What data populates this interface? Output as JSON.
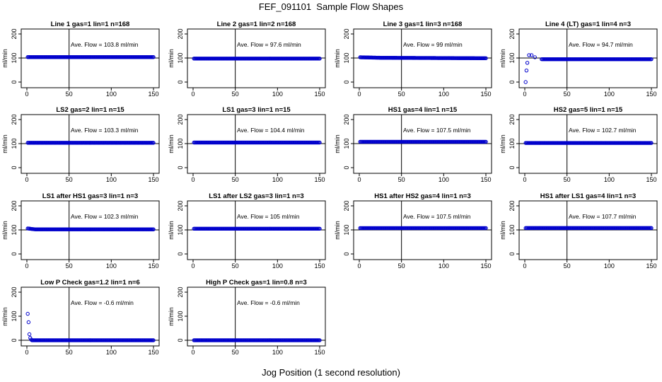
{
  "figure": {
    "title": "FEF_091101  Sample Flow Shapes",
    "xlabel": "Jog Position (1 second resolution)"
  },
  "style": {
    "point_color": "#0000cc",
    "line_color": "#000000"
  },
  "chart_data": [
    {
      "type": "scatter",
      "title": "Line 1 gas=1 lin=1 n=168",
      "ylabel": "ml/min",
      "annotation": "Ave. Flow =  103.8  ml/min",
      "xlim": [
        0,
        150
      ],
      "ylim": [
        0,
        200
      ],
      "xticks": [
        0,
        50,
        100,
        150
      ],
      "yticks": [
        0,
        100,
        200
      ],
      "hline": 100,
      "vline": 50,
      "pattern": "flat",
      "x": [
        1,
        150
      ],
      "y": [
        103.8,
        103.8
      ]
    },
    {
      "type": "scatter",
      "title": "Line 2 gas=1 lin=2 n=168",
      "ylabel": "ml/min",
      "annotation": "Ave. Flow =  97.6  ml/min",
      "xlim": [
        0,
        150
      ],
      "ylim": [
        0,
        200
      ],
      "xticks": [
        0,
        50,
        100,
        150
      ],
      "yticks": [
        0,
        100,
        200
      ],
      "hline": 100,
      "vline": 50,
      "pattern": "flat",
      "x": [
        1,
        150
      ],
      "y": [
        97.6,
        97.6
      ]
    },
    {
      "type": "scatter",
      "title": "Line 3 gas=1 lin=3 n=168",
      "ylabel": "ml/min",
      "annotation": "Ave. Flow =  99  ml/min",
      "xlim": [
        0,
        150
      ],
      "ylim": [
        0,
        200
      ],
      "xticks": [
        0,
        50,
        100,
        150
      ],
      "yticks": [
        0,
        100,
        200
      ],
      "hline": 100,
      "vline": 50,
      "pattern": "flat",
      "x": [
        1,
        25,
        150
      ],
      "y": [
        103,
        101,
        99
      ]
    },
    {
      "type": "scatter",
      "title": "Line 4 (LT) gas=1 lin=4 n=3",
      "ylabel": "ml/min",
      "annotation": "Ave. Flow =  94.7  ml/min",
      "xlim": [
        0,
        150
      ],
      "ylim": [
        0,
        200
      ],
      "xticks": [
        0,
        50,
        100,
        150
      ],
      "yticks": [
        0,
        100,
        200
      ],
      "hline": 100,
      "vline": 50,
      "pattern": "startup",
      "x": [
        1,
        2,
        3,
        5,
        8,
        12,
        20,
        150
      ],
      "y": [
        0,
        48,
        80,
        112,
        112,
        103,
        95,
        95
      ]
    },
    {
      "type": "scatter",
      "title": "LS2 gas=2 lin=1 n=15",
      "ylabel": "ml/min",
      "annotation": "Ave. Flow =  103.3  ml/min",
      "xlim": [
        0,
        150
      ],
      "ylim": [
        0,
        200
      ],
      "xticks": [
        0,
        50,
        100,
        150
      ],
      "yticks": [
        0,
        100,
        200
      ],
      "hline": 100,
      "vline": 50,
      "pattern": "flat",
      "x": [
        1,
        150
      ],
      "y": [
        103.3,
        103.3
      ]
    },
    {
      "type": "scatter",
      "title": "LS1 gas=3 lin=1 n=15",
      "ylabel": "ml/min",
      "annotation": "Ave. Flow =  104.4  ml/min",
      "xlim": [
        0,
        150
      ],
      "ylim": [
        0,
        200
      ],
      "xticks": [
        0,
        50,
        100,
        150
      ],
      "yticks": [
        0,
        100,
        200
      ],
      "hline": 100,
      "vline": 50,
      "pattern": "flat",
      "x": [
        1,
        150
      ],
      "y": [
        104.4,
        104.4
      ]
    },
    {
      "type": "scatter",
      "title": "HS1 gas=4 lin=1 n=15",
      "ylabel": "ml/min",
      "annotation": "Ave. Flow =  107.5  ml/min",
      "xlim": [
        0,
        150
      ],
      "ylim": [
        0,
        200
      ],
      "xticks": [
        0,
        50,
        100,
        150
      ],
      "yticks": [
        0,
        100,
        200
      ],
      "hline": 100,
      "vline": 50,
      "pattern": "flat",
      "x": [
        1,
        150
      ],
      "y": [
        107.5,
        107.5
      ]
    },
    {
      "type": "scatter",
      "title": "HS2 gas=5 lin=1 n=15",
      "ylabel": "ml/min",
      "annotation": "Ave. Flow =  102.7  ml/min",
      "xlim": [
        0,
        150
      ],
      "ylim": [
        0,
        200
      ],
      "xticks": [
        0,
        50,
        100,
        150
      ],
      "yticks": [
        0,
        100,
        200
      ],
      "hline": 100,
      "vline": 50,
      "pattern": "flat",
      "x": [
        1,
        150
      ],
      "y": [
        102.7,
        102.7
      ]
    },
    {
      "type": "scatter",
      "title": "LS1 after HS1 gas=3 lin=1 n=3",
      "ylabel": "ml/min",
      "annotation": "Ave. Flow =  102.3  ml/min",
      "xlim": [
        0,
        150
      ],
      "ylim": [
        0,
        200
      ],
      "xticks": [
        0,
        50,
        100,
        150
      ],
      "yticks": [
        0,
        100,
        200
      ],
      "hline": 100,
      "vline": 50,
      "pattern": "flat",
      "x": [
        1,
        10,
        150
      ],
      "y": [
        106,
        102.3,
        102.3
      ]
    },
    {
      "type": "scatter",
      "title": "LS1 after LS2 gas=3 lin=1 n=3",
      "ylabel": "ml/min",
      "annotation": "Ave. Flow =  105  ml/min",
      "xlim": [
        0,
        150
      ],
      "ylim": [
        0,
        200
      ],
      "xticks": [
        0,
        50,
        100,
        150
      ],
      "yticks": [
        0,
        100,
        200
      ],
      "hline": 100,
      "vline": 50,
      "pattern": "flat",
      "x": [
        1,
        150
      ],
      "y": [
        105,
        105
      ]
    },
    {
      "type": "scatter",
      "title": "HS1 after HS2 gas=4 lin=1 n=3",
      "ylabel": "ml/min",
      "annotation": "Ave. Flow =  107.5  ml/min",
      "xlim": [
        0,
        150
      ],
      "ylim": [
        0,
        200
      ],
      "xticks": [
        0,
        50,
        100,
        150
      ],
      "yticks": [
        0,
        100,
        200
      ],
      "hline": 100,
      "vline": 50,
      "pattern": "flat",
      "x": [
        1,
        150
      ],
      "y": [
        107.5,
        107.5
      ]
    },
    {
      "type": "scatter",
      "title": "HS1 after LS1 gas=4 lin=1 n=3",
      "ylabel": "ml/min",
      "annotation": "Ave. Flow =  107.7  ml/min",
      "xlim": [
        0,
        150
      ],
      "ylim": [
        0,
        200
      ],
      "xticks": [
        0,
        50,
        100,
        150
      ],
      "yticks": [
        0,
        100,
        200
      ],
      "hline": 100,
      "vline": 50,
      "pattern": "flat",
      "x": [
        1,
        150
      ],
      "y": [
        107.7,
        107.7
      ]
    },
    {
      "type": "scatter",
      "title": "Low P Check gas=1.2 lin=1 n=6",
      "ylabel": "ml/min",
      "annotation": "Ave. Flow =  -0.6  ml/min",
      "xlim": [
        0,
        150
      ],
      "ylim": [
        0,
        200
      ],
      "xticks": [
        0,
        50,
        100,
        150
      ],
      "yticks": [
        0,
        100,
        200
      ],
      "hline": 0,
      "vline": 50,
      "pattern": "decay",
      "x": [
        1,
        2,
        3,
        4,
        5,
        6,
        150
      ],
      "y": [
        110,
        75,
        25,
        10,
        3,
        0,
        0
      ]
    },
    {
      "type": "scatter",
      "title": "High P Check gas=1 lin=0.8 n=3",
      "ylabel": "ml/min",
      "annotation": "Ave. Flow =  -0.6  ml/min",
      "xlim": [
        0,
        150
      ],
      "ylim": [
        0,
        200
      ],
      "xticks": [
        0,
        50,
        100,
        150
      ],
      "yticks": [
        0,
        100,
        200
      ],
      "hline": 0,
      "vline": 50,
      "pattern": "flat",
      "x": [
        1,
        150
      ],
      "y": [
        0,
        0
      ]
    }
  ]
}
